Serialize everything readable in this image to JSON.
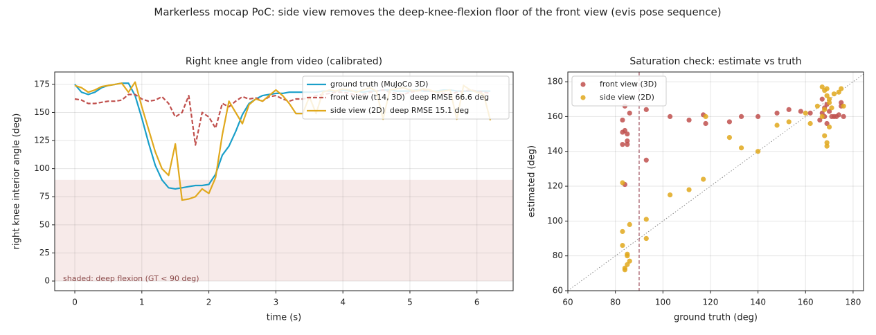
{
  "title": "Markerless mocap PoC: side view removes the deep-knee-flexion floor of the front view (evis pose sequence)",
  "chart_data": [
    {
      "type": "line",
      "title": "Right knee angle from video (calibrated)",
      "x_label": "time (s)",
      "y_label": "right knee interior angle (deg)",
      "xlim": [
        -0.3,
        6.54
      ],
      "ylim": [
        -8.6,
        186
      ],
      "xticks": [
        0,
        1,
        2,
        3,
        4,
        5,
        6
      ],
      "yticks": [
        0,
        25,
        50,
        75,
        100,
        125,
        150,
        175
      ],
      "grid": true,
      "legend": "upper right",
      "shade": {
        "y": [
          0,
          90
        ],
        "color": "#c0504d"
      },
      "annotation": "shaded: deep flexion (GT < 90 deg)",
      "x": [
        0,
        0.1,
        0.2,
        0.3,
        0.4,
        0.5,
        0.6,
        0.7,
        0.8,
        0.9,
        1,
        1.1,
        1.2,
        1.3,
        1.4,
        1.5,
        1.6,
        1.7,
        1.8,
        1.9,
        2,
        2.1,
        2.2,
        2.3,
        2.4,
        2.5,
        2.6,
        2.7,
        2.8,
        2.9,
        3,
        3.1,
        3.2,
        3.3,
        3.4,
        3.5,
        3.6,
        3.7,
        3.8,
        3.9,
        4,
        4.1,
        4.2,
        4.3,
        4.4,
        4.5,
        4.6,
        4.7,
        4.8,
        4.9,
        5,
        5.1,
        5.2,
        5.3,
        5.4,
        5.5,
        5.6,
        5.7,
        5.8,
        5.9,
        6,
        6.1,
        6.2
      ],
      "series": [
        {
          "name": "ground truth (MuJoCo 3D)",
          "color": "#1a9fc9",
          "dash": "solid",
          "values": [
            175,
            168,
            166,
            168,
            172,
            174,
            175,
            176,
            176,
            165,
            145,
            123,
            103,
            90,
            83,
            82,
            83,
            84,
            85,
            85,
            86,
            95,
            112,
            120,
            133,
            148,
            158,
            162,
            165,
            166,
            167,
            167,
            168,
            168,
            168,
            168,
            168,
            169,
            169,
            169,
            170,
            169,
            169,
            168,
            169,
            169,
            170,
            170,
            169,
            169,
            169,
            170,
            169,
            169,
            169,
            170,
            170,
            169,
            169,
            169,
            169,
            169,
            169
          ]
        },
        {
          "name": "front view (t14, 3D)  deep RMSE 66.6 deg",
          "color": "#c0504d",
          "dash": "dashed",
          "values": [
            162,
            161,
            158,
            158,
            159,
            160,
            160,
            161,
            166,
            166,
            162,
            160,
            161,
            164,
            158,
            146,
            150,
            165,
            121,
            150,
            146,
            136,
            158,
            155,
            160,
            164,
            162,
            163,
            160,
            164,
            165,
            162,
            160,
            162,
            162,
            163,
            165,
            166,
            167,
            168,
            168,
            167,
            165,
            166,
            168,
            169,
            170,
            168,
            167,
            166,
            168,
            169,
            170,
            169,
            168,
            167,
            166,
            168,
            169,
            170,
            169,
            168,
            167
          ]
        },
        {
          "name": "side view (2D)  deep RMSE 15.1 deg",
          "color": "#e0a81c",
          "dash": "solid",
          "values": [
            174,
            172,
            168,
            170,
            173,
            174,
            175,
            176,
            168,
            177,
            155,
            135,
            115,
            100,
            94,
            122,
            72,
            73,
            75,
            82,
            78,
            92,
            130,
            160,
            150,
            140,
            157,
            162,
            160,
            165,
            170,
            165,
            158,
            149,
            149,
            164,
            149,
            168,
            170,
            169,
            171,
            170,
            168,
            170,
            172,
            169,
            144,
            170,
            171,
            172,
            170,
            169,
            171,
            170,
            168,
            169,
            170,
            144,
            174,
            170,
            168,
            166,
            143
          ]
        }
      ]
    },
    {
      "type": "scatter",
      "title": "Saturation check: estimate vs truth",
      "x_label": "ground truth (deg)",
      "y_label": "estimated (deg)",
      "xlim": [
        60,
        184.4
      ],
      "ylim": [
        60,
        185.6
      ],
      "xticks": [
        60,
        80,
        100,
        120,
        140,
        160,
        180
      ],
      "yticks": [
        60,
        80,
        100,
        120,
        140,
        160,
        180
      ],
      "grid": true,
      "legend": "upper left",
      "identity_line": true,
      "vline": 90,
      "vline_color": "#8b2a3a",
      "series": [
        {
          "name": "front view (3D)",
          "color": "#c0504d",
          "x": [
            83,
            83,
            84,
            83,
            84,
            85,
            85,
            85,
            86,
            84,
            93,
            93,
            103,
            111,
            117,
            118,
            128,
            133,
            140,
            148,
            153,
            158,
            162,
            166,
            167,
            168,
            169,
            170,
            171,
            172,
            173,
            174,
            175,
            175,
            176,
            168,
            169,
            167
          ],
          "values": [
            158,
            151,
            152,
            144,
            121,
            150,
            146,
            144,
            162,
            166,
            135,
            164,
            160,
            158,
            161,
            156,
            157,
            160,
            160,
            162,
            164,
            163,
            162,
            158,
            162,
            165,
            167,
            163,
            160,
            160,
            160,
            161,
            168,
            166,
            160,
            160,
            156,
            170
          ]
        },
        {
          "name": "side view (2D)",
          "color": "#e0a81c",
          "x": [
            83,
            83,
            83,
            84,
            84,
            85,
            85,
            85,
            86,
            86,
            93,
            93,
            103,
            111,
            117,
            118,
            128,
            133,
            140,
            148,
            153,
            162,
            160,
            165,
            167,
            168,
            169,
            170,
            168,
            169,
            169,
            170,
            172,
            174,
            175,
            176,
            167,
            168,
            169,
            170,
            171
          ],
          "values": [
            122,
            94,
            86,
            72,
            73,
            75,
            81,
            80,
            77,
            98,
            101,
            90,
            115,
            118,
            124,
            160,
            148,
            142,
            140,
            155,
            157,
            156,
            162,
            166,
            177,
            175,
            172,
            170,
            149,
            145,
            143,
            154,
            173,
            174,
            176,
            166,
            160,
            164,
            176,
            168,
            165
          ]
        }
      ]
    }
  ]
}
